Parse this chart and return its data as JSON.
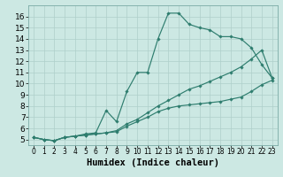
{
  "xlabel": "Humidex (Indice chaleur)",
  "x_values": [
    0,
    1,
    2,
    3,
    4,
    5,
    6,
    7,
    8,
    9,
    10,
    11,
    12,
    13,
    14,
    15,
    16,
    17,
    18,
    19,
    20,
    21,
    22,
    23
  ],
  "line_bottom": [
    5.2,
    5.0,
    4.9,
    5.2,
    5.3,
    5.4,
    5.5,
    5.6,
    5.7,
    6.2,
    6.6,
    7.0,
    7.5,
    7.8,
    8.0,
    8.1,
    8.2,
    8.3,
    8.4,
    8.6,
    8.8,
    9.3,
    9.9,
    10.3
  ],
  "line_mid": [
    5.2,
    5.0,
    4.9,
    5.2,
    5.3,
    5.4,
    5.5,
    5.6,
    5.8,
    6.4,
    6.8,
    7.4,
    8.0,
    8.5,
    9.0,
    9.5,
    9.8,
    10.2,
    10.6,
    11.0,
    11.5,
    12.2,
    13.0,
    10.5
  ],
  "line_top": [
    5.2,
    5.0,
    4.9,
    5.2,
    5.3,
    5.5,
    5.6,
    7.6,
    6.6,
    9.3,
    11.0,
    11.0,
    14.0,
    16.3,
    16.3,
    15.3,
    15.0,
    14.8,
    14.2,
    14.2,
    14.0,
    13.2,
    11.7,
    10.5
  ],
  "line_color": "#2e7d6e",
  "bg_color": "#cce8e3",
  "grid_color": "#aecfca",
  "xlim": [
    -0.5,
    23.5
  ],
  "ylim": [
    4.5,
    17.0
  ],
  "yticks": [
    5,
    6,
    7,
    8,
    9,
    10,
    11,
    12,
    13,
    14,
    15,
    16
  ],
  "xticks": [
    0,
    1,
    2,
    3,
    4,
    5,
    6,
    7,
    8,
    9,
    10,
    11,
    12,
    13,
    14,
    15,
    16,
    17,
    18,
    19,
    20,
    21,
    22,
    23
  ]
}
